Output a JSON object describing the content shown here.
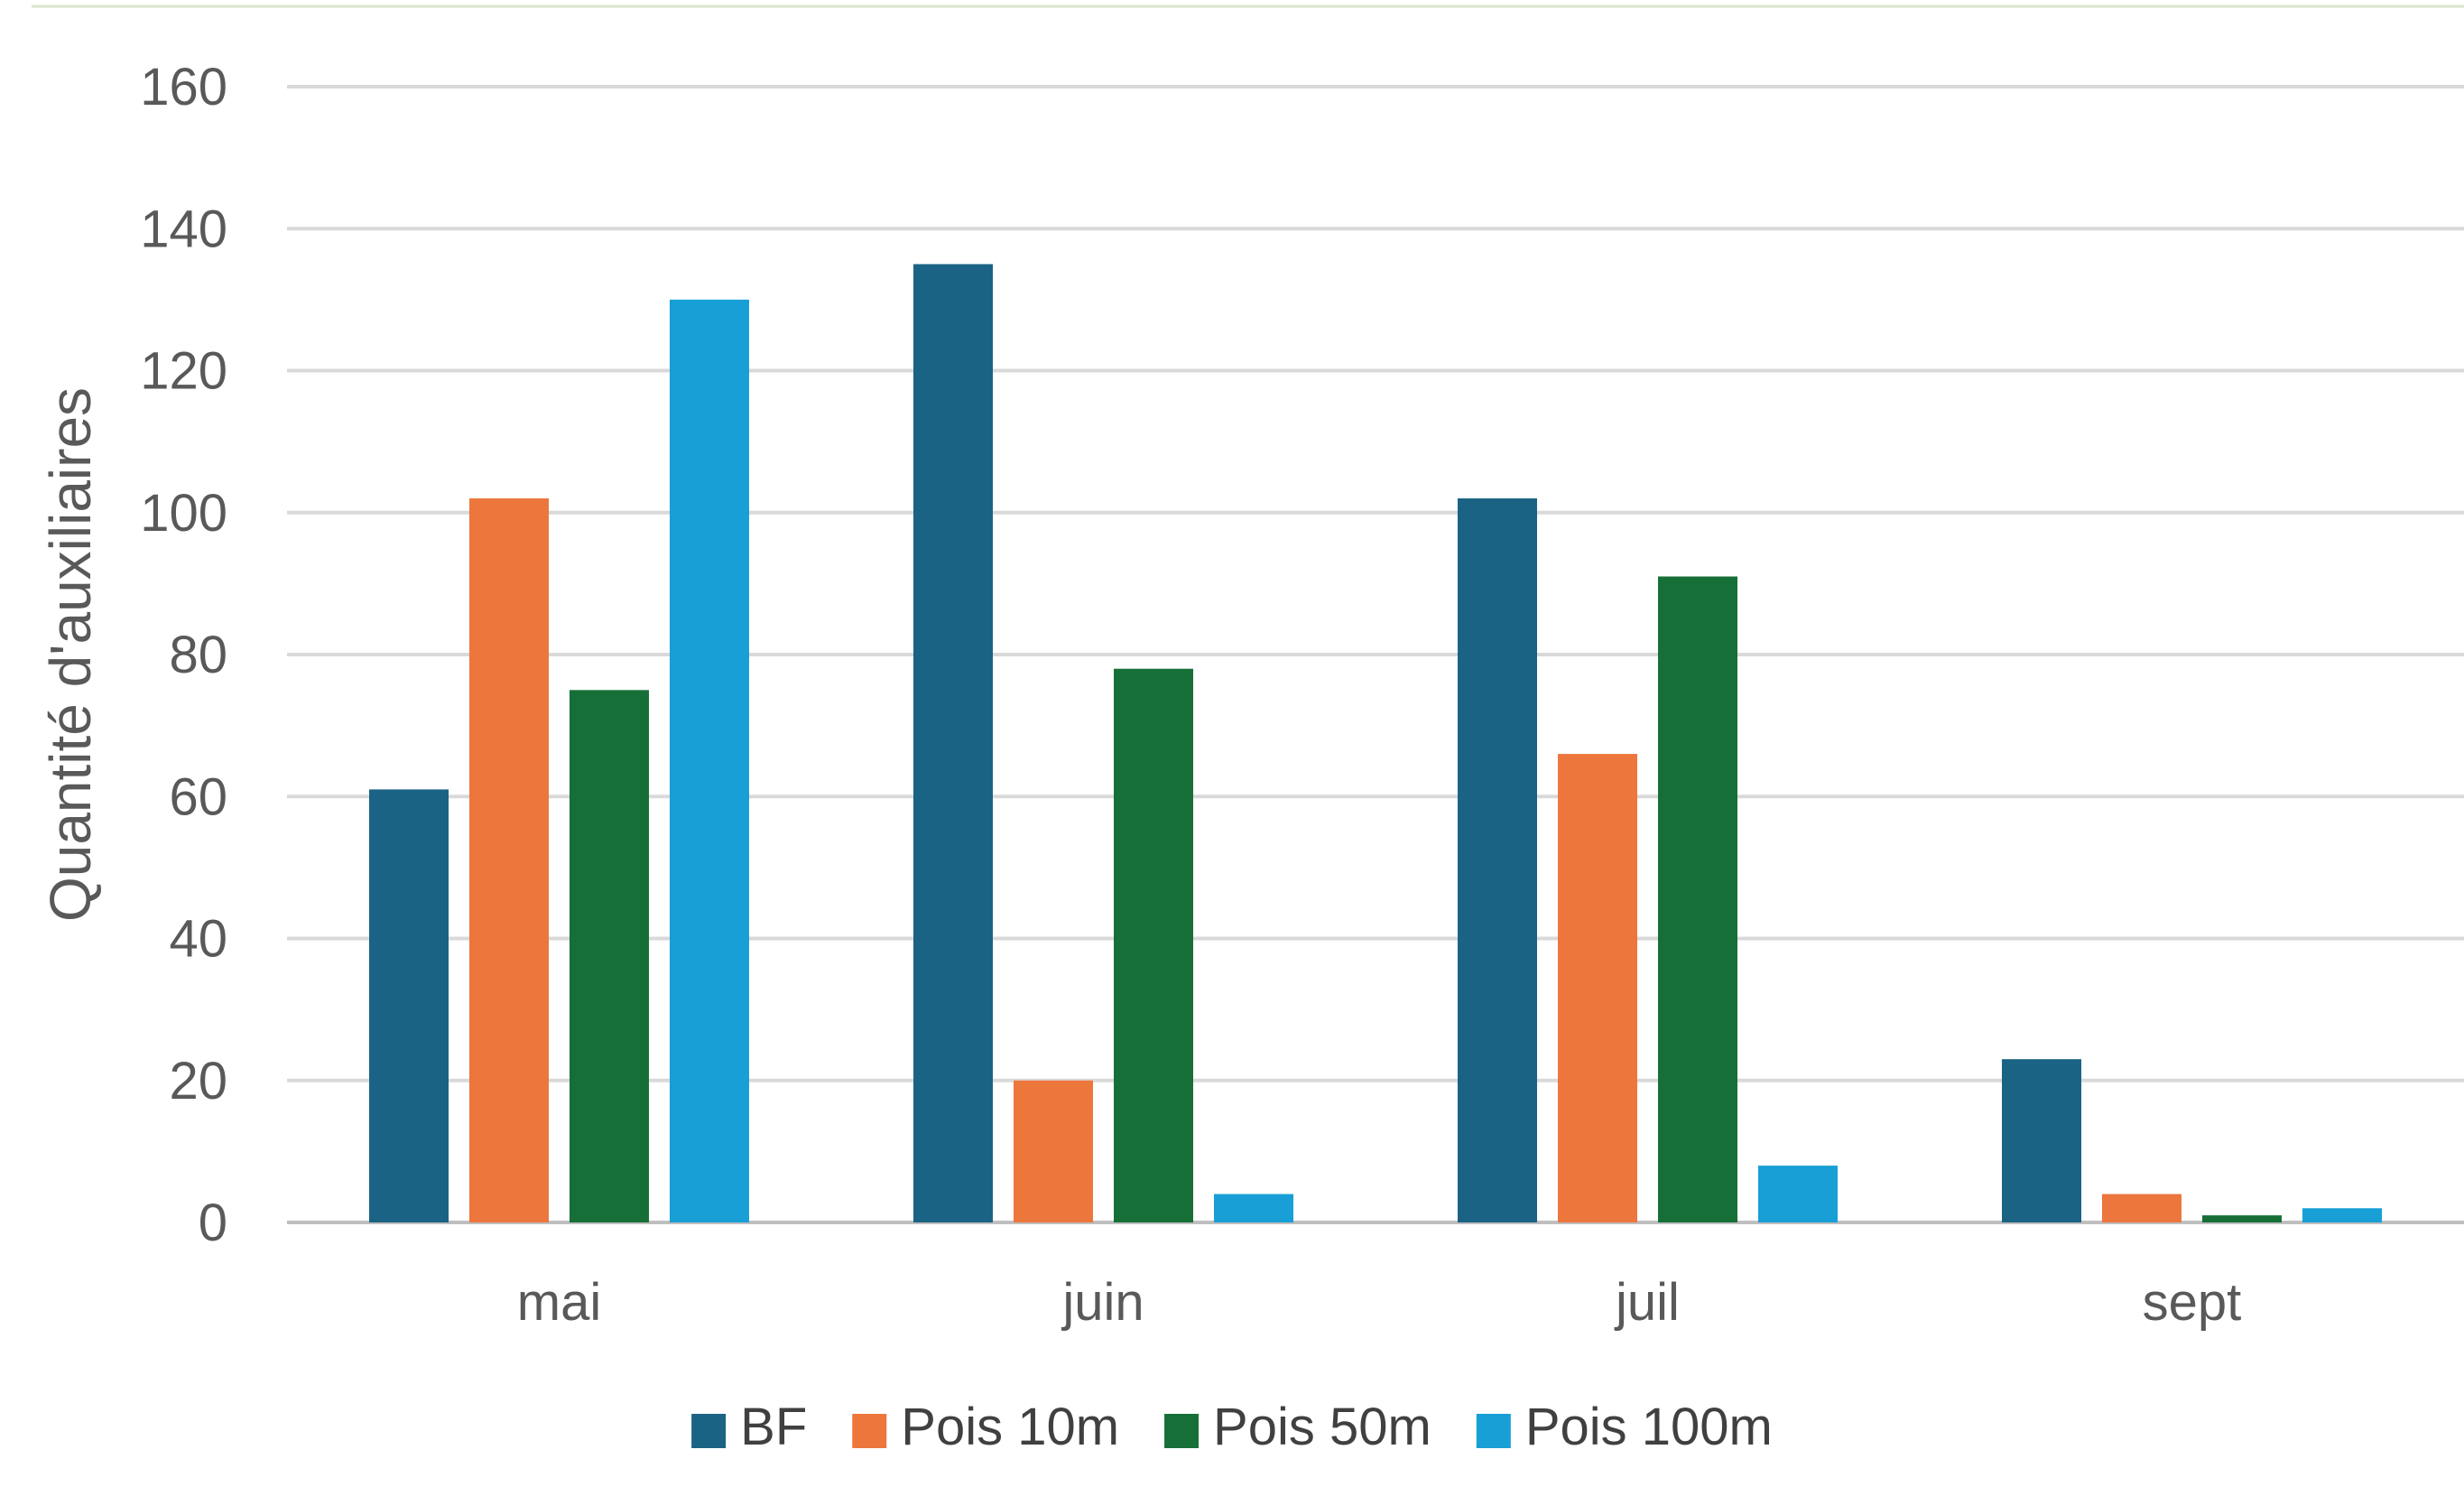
{
  "chart_data": {
    "type": "bar",
    "title": "",
    "xlabel": "",
    "ylabel": "Quantité d'auxiliaires",
    "categories": [
      "mai",
      "juin",
      "juil",
      "sept"
    ],
    "ylim": [
      0,
      160
    ],
    "yticks": [
      0,
      20,
      40,
      60,
      80,
      100,
      120,
      140,
      160
    ],
    "grid": true,
    "legend_position": "bottom",
    "series": [
      {
        "name": "BF",
        "color": "#1b6384",
        "values": [
          61,
          135,
          102,
          23
        ]
      },
      {
        "name": "Pois 10m",
        "color": "#ed763d",
        "values": [
          102,
          20,
          66,
          4
        ]
      },
      {
        "name": "Pois 50m",
        "color": "#176f38",
        "values": [
          75,
          78,
          91,
          1
        ]
      },
      {
        "name": "Pois 100m",
        "color": "#179fd6",
        "values": [
          130,
          4,
          8,
          2
        ]
      }
    ]
  }
}
